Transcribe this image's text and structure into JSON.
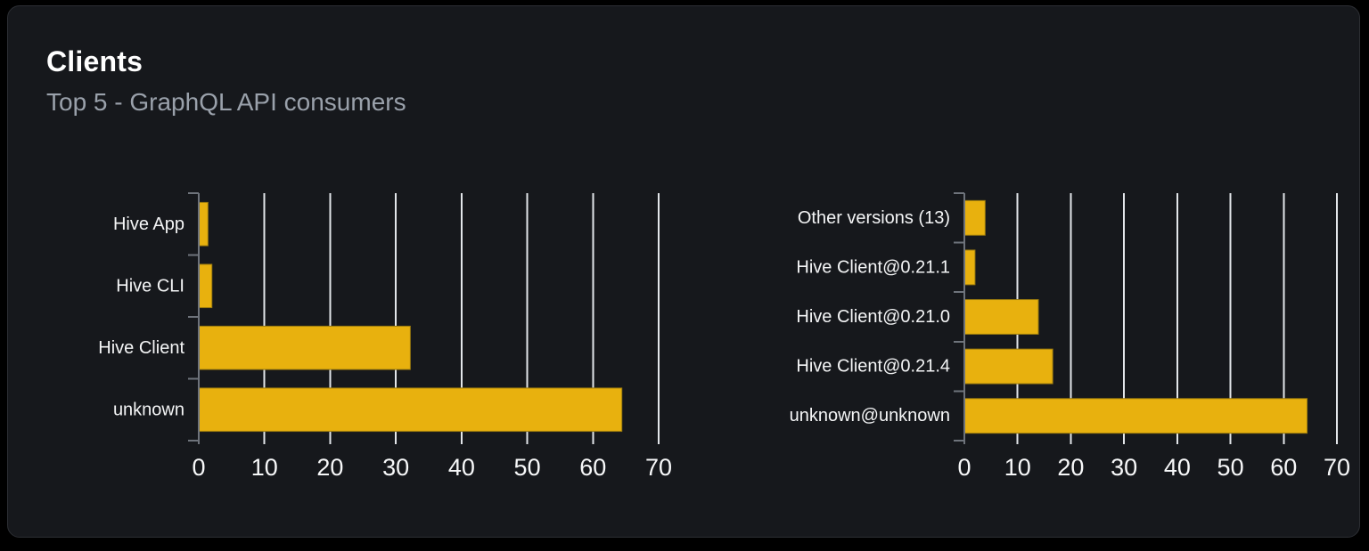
{
  "card": {
    "title": "Clients",
    "subtitle": "Top 5 - GraphQL API consumers"
  },
  "colors": {
    "page_background": "#000000",
    "card_background": "#16181c",
    "card_border": "#2c2e33",
    "title_text": "#ffffff",
    "subtitle_text": "#9aa1ab",
    "bar_fill": "#e8b10e",
    "bar_stroke": "#9a7a0e",
    "gridline": "#e3e6ea",
    "axis": "#6e737b",
    "category_label_text": "#f4f5f6",
    "tick_label_text": "#f7f8f9"
  },
  "chart_data": [
    {
      "name": "clients-by-name",
      "type": "bar",
      "orientation": "horizontal",
      "categories": [
        "Hive App",
        "Hive CLI",
        "Hive Client",
        "unknown"
      ],
      "values": [
        1.4,
        2.0,
        32.2,
        64.4
      ],
      "xlim": [
        0,
        70
      ],
      "x_ticks": [
        0,
        10,
        20,
        30,
        40,
        50,
        60,
        70
      ],
      "x_tick_labels": [
        "0",
        "10",
        "20",
        "30",
        "40",
        "50",
        "60",
        "70"
      ],
      "grid": true,
      "legend": "none",
      "category_order": "top-to-bottom"
    },
    {
      "name": "clients-by-version",
      "type": "bar",
      "orientation": "horizontal",
      "categories": [
        "Other versions (13)",
        "Hive Client@0.21.1",
        "Hive Client@0.21.0",
        "Hive Client@0.21.4",
        "unknown@unknown"
      ],
      "values": [
        3.9,
        2.0,
        13.9,
        16.6,
        64.4
      ],
      "xlim": [
        0,
        70
      ],
      "x_ticks": [
        0,
        10,
        20,
        30,
        40,
        50,
        60,
        70
      ],
      "x_tick_labels": [
        "0",
        "10",
        "20",
        "30",
        "40",
        "50",
        "60",
        "70"
      ],
      "grid": true,
      "legend": "none",
      "category_order": "top-to-bottom"
    }
  ]
}
